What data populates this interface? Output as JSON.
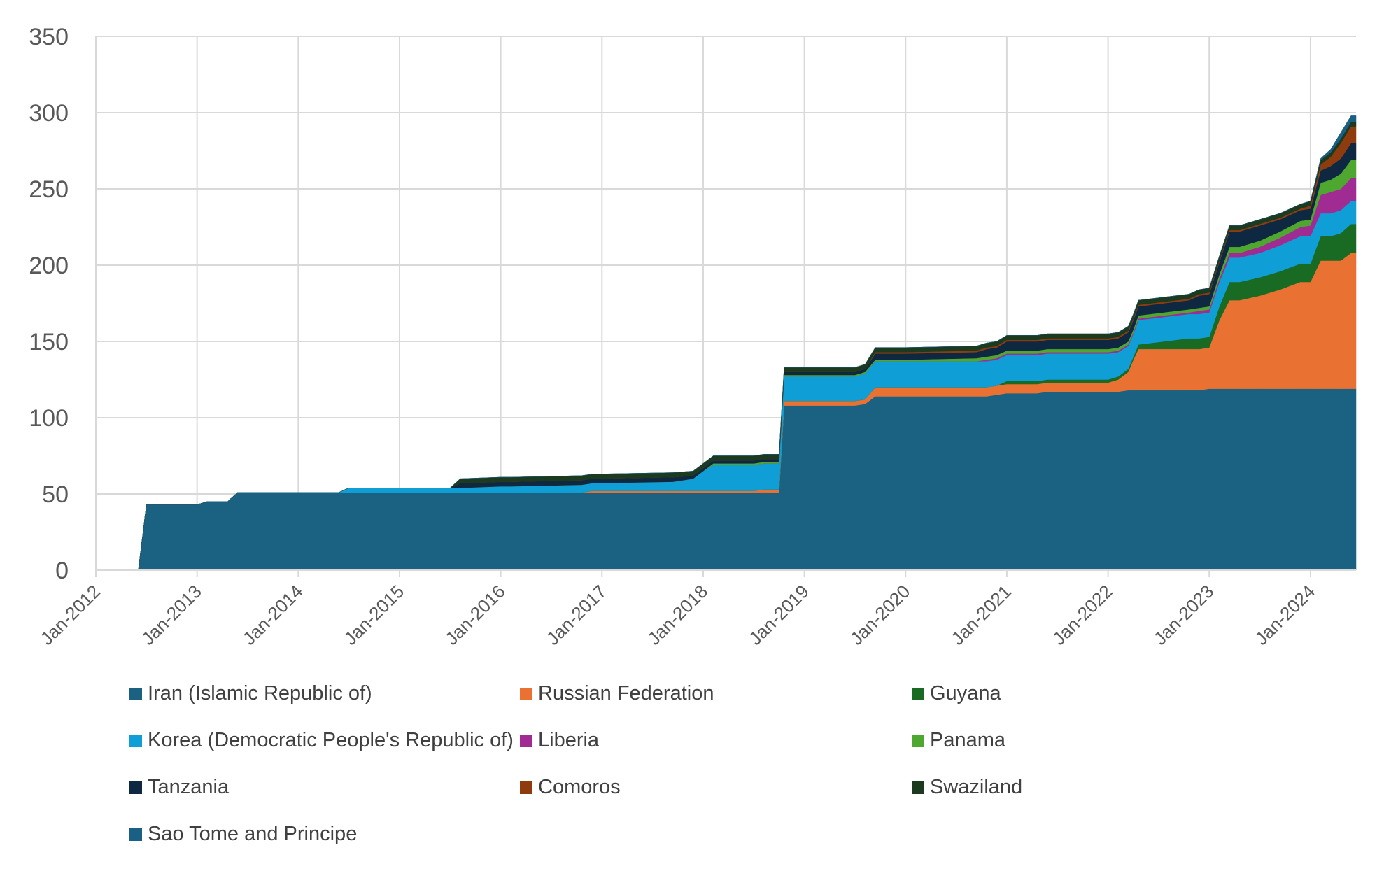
{
  "chart_data": {
    "type": "area",
    "stacked": true,
    "title": "",
    "xlabel": "",
    "ylabel": "",
    "ylim": [
      0,
      350
    ],
    "yticks": [
      0,
      50,
      100,
      150,
      200,
      250,
      300,
      350
    ],
    "xlim": [
      2012.0,
      2024.45
    ],
    "xticks": [
      {
        "value": 2012,
        "label": "Jan-2012"
      },
      {
        "value": 2013,
        "label": "Jan-2013"
      },
      {
        "value": 2014,
        "label": "Jan-2014"
      },
      {
        "value": 2015,
        "label": "Jan-2015"
      },
      {
        "value": 2016,
        "label": "Jan-2016"
      },
      {
        "value": 2017,
        "label": "Jan-2017"
      },
      {
        "value": 2018,
        "label": "Jan-2018"
      },
      {
        "value": 2019,
        "label": "Jan-2019"
      },
      {
        "value": 2020,
        "label": "Jan-2020"
      },
      {
        "value": 2021,
        "label": "Jan-2021"
      },
      {
        "value": 2022,
        "label": "Jan-2022"
      },
      {
        "value": 2023,
        "label": "Jan-2023"
      },
      {
        "value": 2024,
        "label": "Jan-2024"
      }
    ],
    "grid": true,
    "legend_position": "bottom",
    "x": [
      2012.42,
      2012.5,
      2013.0,
      2013.1,
      2013.3,
      2013.4,
      2014.4,
      2014.5,
      2015.5,
      2015.6,
      2016.0,
      2016.1,
      2016.8,
      2016.9,
      2017.7,
      2017.9,
      2018.0,
      2018.1,
      2018.5,
      2018.6,
      2018.75,
      2018.8,
      2019.5,
      2019.6,
      2019.7,
      2020.0,
      2020.7,
      2020.8,
      2020.9,
      2021.0,
      2021.3,
      2021.4,
      2022.0,
      2022.1,
      2022.2,
      2022.25,
      2022.3,
      2022.8,
      2022.9,
      2023.0,
      2023.1,
      2023.2,
      2023.3,
      2023.5,
      2023.7,
      2023.9,
      2024.0,
      2024.1,
      2024.2,
      2024.3,
      2024.4,
      2024.45
    ],
    "series": [
      {
        "name": "Iran (Islamic Republic of)",
        "color": "#1a6182",
        "values": [
          0,
          43,
          43,
          45,
          45,
          51,
          51,
          51,
          51,
          51,
          51,
          51,
          51,
          51,
          51,
          51,
          51,
          51,
          51,
          51,
          51,
          108,
          108,
          109,
          114,
          114,
          114,
          114,
          115,
          116,
          116,
          117,
          117,
          117,
          118,
          118,
          118,
          118,
          118,
          119,
          119,
          119,
          119,
          119,
          119,
          119,
          119,
          119,
          119,
          119,
          119,
          119
        ]
      },
      {
        "name": "Russian Federation",
        "color": "#e97132",
        "values": [
          0,
          0,
          0,
          0,
          0,
          0,
          0,
          0,
          0,
          0,
          0,
          0,
          0,
          1,
          1,
          1,
          1,
          1,
          1,
          2,
          2,
          3,
          3,
          3,
          6,
          6,
          6,
          6,
          6,
          6,
          6,
          6,
          6,
          8,
          12,
          20,
          27,
          27,
          27,
          27,
          45,
          58,
          58,
          61,
          65,
          70,
          70,
          84,
          84,
          84,
          89,
          89
        ]
      },
      {
        "name": "Guyana",
        "color": "#196b24",
        "values": [
          0,
          0,
          0,
          0,
          0,
          0,
          0,
          0,
          0,
          0,
          0,
          0,
          0,
          0,
          0,
          0,
          0,
          0,
          0,
          0,
          0,
          0,
          0,
          0,
          0,
          0,
          0,
          0,
          0,
          2,
          2,
          2,
          2,
          2,
          2,
          2,
          3,
          7,
          7,
          7,
          9,
          12,
          12,
          12,
          12,
          12,
          12,
          16,
          16,
          18,
          19,
          19
        ]
      },
      {
        "name": "Korea (Democratic People's Republic of)",
        "color": "#0f9ed5",
        "values": [
          0,
          0,
          0,
          0,
          0,
          0,
          0,
          3,
          3,
          3,
          4,
          4,
          5,
          5,
          6,
          8,
          13,
          17,
          17,
          17,
          17,
          16,
          16,
          17,
          17,
          17,
          17,
          17,
          17,
          17,
          17,
          17,
          17,
          16,
          15,
          15,
          16,
          16,
          16,
          16,
          16,
          16,
          16,
          16,
          17,
          18,
          18,
          15,
          15,
          15,
          15,
          15
        ]
      },
      {
        "name": "Liberia",
        "color": "#a02b93",
        "values": [
          0,
          0,
          0,
          0,
          0,
          0,
          0,
          0,
          0,
          0,
          0,
          0,
          0,
          0,
          0,
          0,
          0,
          0,
          0,
          0,
          0,
          0,
          0,
          0,
          0,
          0,
          0,
          1,
          1,
          1,
          1,
          1,
          1,
          1,
          1,
          1,
          1,
          1,
          2,
          2,
          2,
          3,
          3,
          4,
          5,
          6,
          7,
          12,
          14,
          14,
          15,
          15
        ]
      },
      {
        "name": "Panama",
        "color": "#4ea72e",
        "values": [
          0,
          0,
          0,
          0,
          0,
          0,
          0,
          0,
          0,
          0,
          0,
          0,
          0,
          0,
          0,
          0,
          0,
          1,
          1,
          1,
          1,
          1,
          1,
          1,
          1,
          1,
          2,
          2,
          2,
          2,
          2,
          2,
          2,
          2,
          2,
          2,
          2,
          2,
          2,
          2,
          3,
          4,
          4,
          4,
          4,
          4,
          4,
          8,
          8,
          10,
          12,
          12
        ]
      },
      {
        "name": "Tanzania",
        "color": "#0e2841",
        "values": [
          0,
          0,
          0,
          0,
          0,
          0,
          0,
          0,
          0,
          3,
          3,
          3,
          3,
          3,
          3,
          2,
          2,
          2,
          2,
          2,
          2,
          2,
          2,
          2,
          4,
          4,
          4,
          5,
          5,
          6,
          6,
          6,
          6,
          6,
          6,
          6,
          6,
          6,
          8,
          8,
          8,
          10,
          10,
          10,
          8,
          7,
          7,
          8,
          9,
          10,
          11,
          11
        ]
      },
      {
        "name": "Comoros",
        "color": "#8e3c0e",
        "values": [
          0,
          0,
          0,
          0,
          0,
          0,
          0,
          0,
          0,
          0,
          0,
          0,
          0,
          0,
          0,
          0,
          0,
          0,
          0,
          0,
          0,
          0,
          0,
          0,
          1,
          1,
          1,
          1,
          1,
          1,
          1,
          1,
          1,
          1,
          1,
          1,
          1,
          1,
          1,
          1,
          1,
          1,
          1,
          1,
          1,
          1,
          2,
          4,
          6,
          10,
          11,
          11
        ]
      },
      {
        "name": "Swaziland",
        "color": "#1b3a1f",
        "values": [
          0,
          0,
          0,
          0,
          0,
          0,
          0,
          0,
          0,
          3,
          3,
          3,
          3,
          3,
          3,
          3,
          3,
          3,
          3,
          3,
          3,
          3,
          3,
          3,
          3,
          3,
          3,
          3,
          3,
          3,
          3,
          3,
          3,
          3,
          3,
          3,
          3,
          3,
          3,
          3,
          3,
          3,
          3,
          3,
          3,
          3,
          3,
          3,
          3,
          3,
          3,
          3
        ]
      },
      {
        "name": "Sao Tome and Principe",
        "color": "#1a5f84",
        "values": [
          0,
          0,
          0,
          0,
          0,
          0,
          0,
          0,
          0,
          0,
          0,
          0,
          0,
          0,
          0,
          0,
          0,
          0,
          0,
          0,
          0,
          0,
          0,
          0,
          0,
          0,
          0,
          0,
          0,
          0,
          0,
          0,
          0,
          0,
          0,
          0,
          0,
          0,
          0,
          0,
          0,
          0,
          0,
          0,
          0,
          0,
          0,
          1,
          2,
          4,
          4,
          4
        ]
      }
    ]
  }
}
